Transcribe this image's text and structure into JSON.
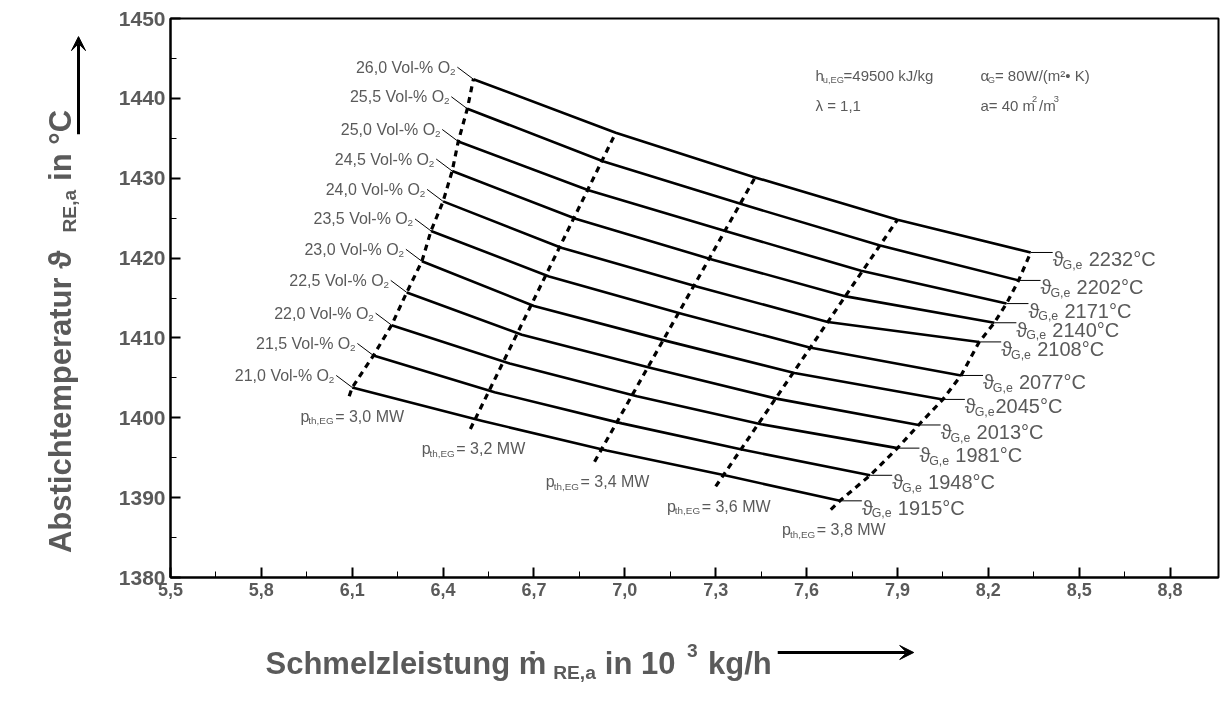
{
  "chart_data": {
    "type": "line",
    "xlabel": "Schmelzleistung ṁ $_{RE,a}$ in 10$^{3}$ kg/h",
    "ylabel": "Abstichtemperatur ϑ $_{RE,a}$ in °C",
    "xlim": [
      5.5,
      8.96
    ],
    "ylim": [
      1380,
      1450
    ],
    "xticks": [
      {
        "value": 5.5,
        "label": "5,5"
      },
      {
        "value": 5.8,
        "label": "5,8"
      },
      {
        "value": 6.1,
        "label": "6,1"
      },
      {
        "value": 6.4,
        "label": "6,4"
      },
      {
        "value": 6.7,
        "label": "6,7"
      },
      {
        "value": 7.0,
        "label": "7,0"
      },
      {
        "value": 7.3,
        "label": "7,3"
      },
      {
        "value": 7.6,
        "label": "7,6"
      },
      {
        "value": 7.9,
        "label": "7,9"
      },
      {
        "value": 8.2,
        "label": "8,2"
      },
      {
        "value": 8.5,
        "label": "8,5"
      },
      {
        "value": 8.8,
        "label": "8,8"
      }
    ],
    "yticks": [
      1380,
      1390,
      1400,
      1410,
      1420,
      1430,
      1440,
      1450
    ],
    "grid": false,
    "legend": "left",
    "series": [
      {
        "name": "26,0 Vol-% O$_{2}$",
        "color": "#000000",
        "line_style": "solid",
        "x": [
          6.5,
          6.97,
          7.43,
          7.9,
          8.34
        ],
        "values": [
          1442.4,
          1435.7,
          1430.1,
          1424.8,
          1420.7
        ]
      },
      {
        "name": "25,5 Vol-% O$_{2}$",
        "color": "#000000",
        "line_style": "solid",
        "x": [
          6.48,
          6.93,
          7.39,
          7.84,
          8.3
        ],
        "values": [
          1438.7,
          1432.1,
          1426.7,
          1421.6,
          1417.2
        ]
      },
      {
        "name": "25,0 Vol-% O$_{2}$",
        "color": "#000000",
        "line_style": "solid",
        "x": [
          6.45,
          6.88,
          7.34,
          7.78,
          8.26
        ],
        "values": [
          1434.6,
          1428.5,
          1423.3,
          1418.4,
          1414.3
        ]
      },
      {
        "name": "24,5 Vol-% O$_{2}$",
        "color": "#000000",
        "line_style": "solid",
        "x": [
          6.43,
          6.84,
          7.29,
          7.73,
          8.22
        ],
        "values": [
          1430.9,
          1424.9,
          1419.8,
          1415.2,
          1411.9
        ]
      },
      {
        "name": "24,0 Vol-% O$_{2}$",
        "color": "#000000",
        "line_style": "solid",
        "x": [
          6.4,
          6.79,
          7.24,
          7.67,
          8.17
        ],
        "values": [
          1427.1,
          1421.3,
          1416.4,
          1412.0,
          1409.5
        ]
      },
      {
        "name": "23,5 Vol-% O$_{2}$",
        "color": "#000000",
        "line_style": "solid",
        "x": [
          6.36,
          6.75,
          7.19,
          7.61,
          8.11
        ],
        "values": [
          1423.4,
          1417.7,
          1413.0,
          1408.8,
          1405.3
        ]
      },
      {
        "name": "23,0 Vol-% O$_{2}$",
        "color": "#000000",
        "line_style": "solid",
        "x": [
          6.33,
          6.7,
          7.14,
          7.56,
          8.05
        ],
        "values": [
          1419.6,
          1414.0,
          1409.6,
          1405.6,
          1402.3
        ]
      },
      {
        "name": "22,5 Vol-% O$_{2}$",
        "color": "#000000",
        "line_style": "solid",
        "x": [
          6.28,
          6.66,
          7.09,
          7.5,
          7.97
        ],
        "values": [
          1415.7,
          1410.4,
          1406.2,
          1402.4,
          1399.1
        ]
      },
      {
        "name": "22,0 Vol-% O$_{2}$",
        "color": "#000000",
        "line_style": "solid",
        "x": [
          6.23,
          6.62,
          7.04,
          7.45,
          7.9
        ],
        "values": [
          1411.6,
          1406.8,
          1402.7,
          1399.2,
          1396.2
        ]
      },
      {
        "name": "21,5 Vol-% O$_{2}$",
        "color": "#000000",
        "line_style": "solid",
        "x": [
          6.17,
          6.57,
          6.99,
          7.39,
          7.81
        ],
        "values": [
          1407.8,
          1403.2,
          1399.3,
          1396.0,
          1392.8
        ]
      },
      {
        "name": "21,0 Vol-% O$_{2}$",
        "color": "#000000",
        "line_style": "solid",
        "x": [
          6.1,
          6.53,
          6.94,
          7.33,
          7.71
        ],
        "values": [
          1403.8,
          1399.6,
          1395.9,
          1392.8,
          1389.6
        ]
      },
      {
        "name": "p$_{th,EG}$= 3,0 MW",
        "color": "#000000",
        "line_style": "dashed",
        "x": [
          6.09,
          6.1,
          6.17,
          6.23,
          6.28,
          6.33,
          6.36,
          6.4,
          6.43,
          6.45,
          6.48,
          6.5
        ],
        "values": [
          1402.7,
          1403.8,
          1407.8,
          1411.6,
          1415.7,
          1419.6,
          1423.4,
          1427.1,
          1430.9,
          1434.6,
          1438.7,
          1442.4
        ]
      },
      {
        "name": "p$_{th,EG}$= 3,2 MW",
        "color": "#000000",
        "line_style": "dashed",
        "x": [
          6.49,
          6.97
        ],
        "values": [
          1398.6,
          1435.7
        ]
      },
      {
        "name": "p$_{th,EG}$= 3,4 MW",
        "color": "#000000",
        "line_style": "dashed",
        "x": [
          6.9,
          7.43
        ],
        "values": [
          1394.5,
          1430.1
        ]
      },
      {
        "name": "p$_{th,EG}$= 3,6 MW",
        "color": "#000000",
        "line_style": "dashed",
        "x": [
          7.3,
          7.9
        ],
        "values": [
          1391.4,
          1424.8
        ]
      },
      {
        "name": "p$_{th,EG}$= 3,8 MW",
        "color": "#000000",
        "line_style": "dashed",
        "x": [
          7.68,
          7.71,
          7.81,
          7.9,
          7.97,
          8.05,
          8.11,
          8.17,
          8.22,
          8.26,
          8.3,
          8.34
        ],
        "values": [
          1388.5,
          1389.6,
          1392.8,
          1396.2,
          1399.1,
          1402.3,
          1405.3,
          1409.5,
          1411.9,
          1414.3,
          1417.2,
          1420.7
        ]
      }
    ],
    "annotations": [
      "h$_{u,EG}$=49500 kJ/kg",
      "α$_{G}$= 80W/(m²• K)",
      "λ  = 1,1",
      "a= 40 m$^{2}$/m$^{3}$",
      {
        "text": "ϑ$_{G,e}$ 2232°C",
        "x": 8.34,
        "y": 1420.7
      },
      {
        "text": "ϑ$_{G,e}$ 2202°C",
        "x": 8.3,
        "y": 1417.2
      },
      {
        "text": "ϑ$_{G,e}$ 2171°C",
        "x": 8.26,
        "y": 1414.3
      },
      {
        "text": "ϑ$_{G,e}$ 2140°C",
        "x": 8.22,
        "y": 1411.9
      },
      {
        "text": "ϑ$_{G,e}$ 2108°C",
        "x": 8.17,
        "y": 1409.5
      },
      {
        "text": "ϑ$_{G,e}$ 2077°C",
        "x": 8.11,
        "y": 1405.3
      },
      {
        "text": "ϑ$_{G,e}$2045°C",
        "x": 8.05,
        "y": 1402.3
      },
      {
        "text": "ϑ$_{G,e}$ 2013°C",
        "x": 7.97,
        "y": 1399.1
      },
      {
        "text": "ϑ$_{G,e}$ 1981°C",
        "x": 7.9,
        "y": 1396.2
      },
      {
        "text": "ϑ$_{G,e}$ 1948°C",
        "x": 7.81,
        "y": 1392.8
      },
      {
        "text": "ϑ$_{G,e}$ 1915°C",
        "x": 7.71,
        "y": 1389.6
      }
    ]
  }
}
